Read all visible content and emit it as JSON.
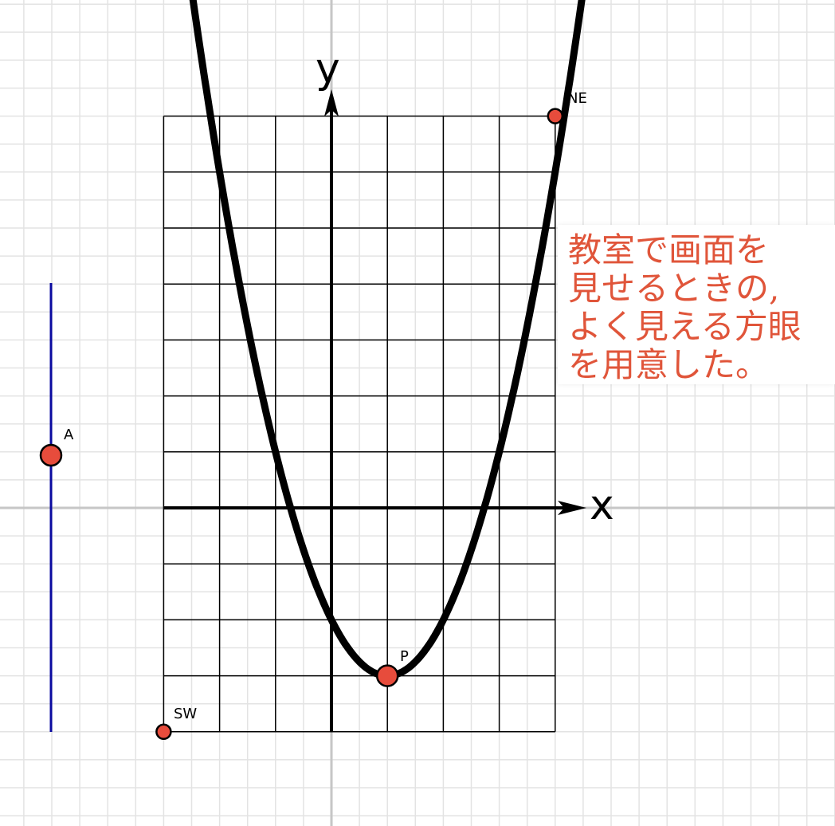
{
  "colors": {
    "background_grid": "#e3e3e3",
    "main_axis_gray": "#c6c6c6",
    "board_grid": "#000000",
    "curve": "#000000",
    "point_fill": "#e74c3c",
    "point_stroke": "#000000",
    "slider_line": "#0a0aa0",
    "note_text": "#e0553a"
  },
  "axes": {
    "x_label": "x",
    "y_label": "y"
  },
  "points": [
    {
      "name": "NE",
      "label": "NE"
    },
    {
      "name": "SW",
      "label": "SW"
    },
    {
      "name": "P",
      "label": "P"
    },
    {
      "name": "A",
      "label": "A"
    }
  ],
  "note": {
    "lines": [
      "教室で画面を",
      "見せるときの,",
      "よく見える方眼",
      "を用意した。"
    ]
  }
}
